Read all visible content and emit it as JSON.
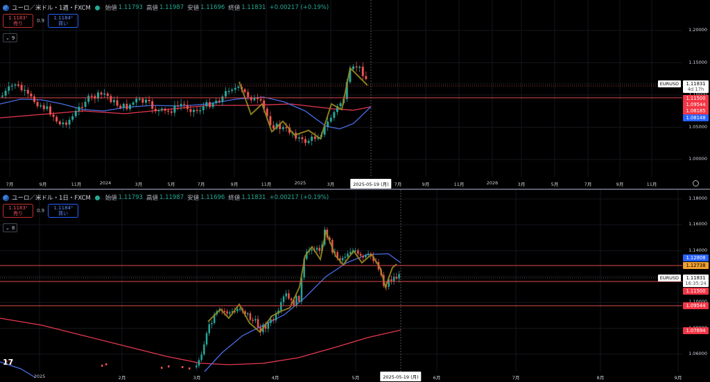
{
  "colors": {
    "bg": "#000000",
    "up": "#26a69a",
    "down": "#ef5350",
    "ma_blue": "#4a6ee8",
    "ma_red": "#e8384f",
    "zigzag": "#9a8a1e",
    "grid": "#14161c",
    "level_line": "#e34a4a",
    "highlight_orange": "#f0a030"
  },
  "panes": [
    {
      "header": {
        "symbol": "ユーロ／米ドル・1週・FXCM",
        "open_label": "始値",
        "open": "1.11793",
        "high_label": "高値",
        "high": "1.11987",
        "low_label": "安値",
        "low": "1.11696",
        "close_label": "終値",
        "close": "1.11831",
        "change": "+0.00217 (+0.19%)"
      },
      "trade": {
        "sell_price": "1.1183¹",
        "sell_label": "売り",
        "spread": "0.9",
        "buy_price": "1.1184⁰",
        "buy_label": "買い"
      },
      "indicator_toggle": "9",
      "price_axis": [
        "1.20000",
        "1.15000",
        "1.10000",
        "1.05000",
        "1.00000"
      ],
      "time_axis": [
        "7月",
        "9月",
        "11月",
        "2024",
        "3月",
        "5月",
        "7月",
        "9月",
        "11月",
        "2025",
        "3月",
        "7月",
        "9月",
        "11月",
        "2026",
        "3月",
        "5月",
        "7月",
        "9月",
        "11月"
      ],
      "tags": [
        {
          "label": "EURUSD",
          "price": "1.11831",
          "sub": "4d 17h",
          "style": "current"
        },
        {
          "price": "1.11500",
          "style": "red"
        },
        {
          "price": "1.09544",
          "style": "red"
        },
        {
          "price": "1.08185",
          "style": "red"
        },
        {
          "price": "1.08148",
          "style": "blue"
        }
      ],
      "crosshair_date": "2025-05-19 (月)"
    },
    {
      "header": {
        "symbol": "ユーロ／米ドル・1日・FXCM",
        "open_label": "始値",
        "open": "1.11793",
        "high_label": "高値",
        "high": "1.11987",
        "low_label": "安値",
        "low": "1.11696",
        "close_label": "終値",
        "close": "1.11831",
        "change": "+0.00217 (+0.19%)"
      },
      "trade": {
        "sell_price": "1.1183¹",
        "sell_label": "売り",
        "spread": "0.9",
        "buy_price": "1.1184⁰",
        "buy_label": "買い"
      },
      "indicator_toggle": "8",
      "price_axis": [
        "1.18000",
        "1.16000",
        "1.14000",
        "1.10000",
        "1.08000",
        "1.06000"
      ],
      "time_axis": [
        "2025",
        "2月",
        "3月",
        "4月",
        "5月",
        "6月",
        "7月",
        "8月",
        "9月"
      ],
      "tags": [
        {
          "price": "1.12808",
          "style": "blue"
        },
        {
          "price": "1.12738",
          "style": "orange"
        },
        {
          "label": "EURUSD",
          "price": "1.11831",
          "sub": "16:35:24",
          "style": "current"
        },
        {
          "price": "1.11500",
          "style": "red"
        },
        {
          "price": "1.09544",
          "style": "red"
        },
        {
          "price": "1.07694",
          "style": "red"
        }
      ],
      "crosshair_date": "2025-05-19 (月)"
    }
  ]
}
